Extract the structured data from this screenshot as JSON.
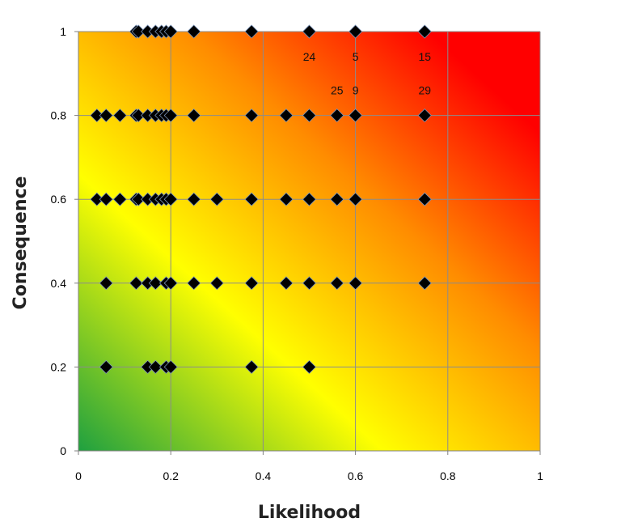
{
  "chart_data": {
    "type": "scatter",
    "title": "",
    "xlabel": "Likelihood",
    "ylabel": "Consequence",
    "xlim": [
      0,
      1
    ],
    "ylim": [
      0,
      1
    ],
    "x_ticks": [
      "0",
      "0.2",
      "0.4",
      "0.6",
      "0.8",
      "1"
    ],
    "y_ticks": [
      "0",
      "0.2",
      "0.4",
      "0.6",
      "0.8",
      "1"
    ],
    "grid": true,
    "marker": "diamond",
    "marker_color": "#000000",
    "background": "heatmap gradient: green at (0,0), yellow in middle, red at (1,1)",
    "colors": {
      "low": "#1fa040",
      "mid": "#ffff00",
      "high": "#ff0000"
    },
    "points": [
      {
        "x": 0.125,
        "y": 1.0
      },
      {
        "x": 0.13,
        "y": 1.0
      },
      {
        "x": 0.15,
        "y": 1.0
      },
      {
        "x": 0.167,
        "y": 1.0
      },
      {
        "x": 0.18,
        "y": 1.0
      },
      {
        "x": 0.19,
        "y": 1.0
      },
      {
        "x": 0.2,
        "y": 1.0
      },
      {
        "x": 0.25,
        "y": 1.0
      },
      {
        "x": 0.375,
        "y": 1.0
      },
      {
        "x": 0.5,
        "y": 1.0
      },
      {
        "x": 0.6,
        "y": 1.0
      },
      {
        "x": 0.75,
        "y": 1.0
      },
      {
        "x": 0.04,
        "y": 0.8
      },
      {
        "x": 0.06,
        "y": 0.8
      },
      {
        "x": 0.09,
        "y": 0.8
      },
      {
        "x": 0.125,
        "y": 0.8
      },
      {
        "x": 0.13,
        "y": 0.8
      },
      {
        "x": 0.15,
        "y": 0.8
      },
      {
        "x": 0.167,
        "y": 0.8
      },
      {
        "x": 0.18,
        "y": 0.8
      },
      {
        "x": 0.19,
        "y": 0.8
      },
      {
        "x": 0.2,
        "y": 0.8
      },
      {
        "x": 0.25,
        "y": 0.8
      },
      {
        "x": 0.375,
        "y": 0.8
      },
      {
        "x": 0.45,
        "y": 0.8
      },
      {
        "x": 0.5,
        "y": 0.8
      },
      {
        "x": 0.56,
        "y": 0.8
      },
      {
        "x": 0.6,
        "y": 0.8
      },
      {
        "x": 0.75,
        "y": 0.8
      },
      {
        "x": 0.04,
        "y": 0.6
      },
      {
        "x": 0.06,
        "y": 0.6
      },
      {
        "x": 0.09,
        "y": 0.6
      },
      {
        "x": 0.125,
        "y": 0.6
      },
      {
        "x": 0.13,
        "y": 0.6
      },
      {
        "x": 0.15,
        "y": 0.6
      },
      {
        "x": 0.167,
        "y": 0.6
      },
      {
        "x": 0.18,
        "y": 0.6
      },
      {
        "x": 0.19,
        "y": 0.6
      },
      {
        "x": 0.2,
        "y": 0.6
      },
      {
        "x": 0.25,
        "y": 0.6
      },
      {
        "x": 0.3,
        "y": 0.6
      },
      {
        "x": 0.375,
        "y": 0.6
      },
      {
        "x": 0.45,
        "y": 0.6
      },
      {
        "x": 0.5,
        "y": 0.6
      },
      {
        "x": 0.56,
        "y": 0.6
      },
      {
        "x": 0.6,
        "y": 0.6
      },
      {
        "x": 0.75,
        "y": 0.6
      },
      {
        "x": 0.06,
        "y": 0.4
      },
      {
        "x": 0.125,
        "y": 0.4
      },
      {
        "x": 0.15,
        "y": 0.4
      },
      {
        "x": 0.167,
        "y": 0.4
      },
      {
        "x": 0.19,
        "y": 0.4
      },
      {
        "x": 0.2,
        "y": 0.4
      },
      {
        "x": 0.25,
        "y": 0.4
      },
      {
        "x": 0.3,
        "y": 0.4
      },
      {
        "x": 0.375,
        "y": 0.4
      },
      {
        "x": 0.45,
        "y": 0.4
      },
      {
        "x": 0.5,
        "y": 0.4
      },
      {
        "x": 0.56,
        "y": 0.4
      },
      {
        "x": 0.6,
        "y": 0.4
      },
      {
        "x": 0.75,
        "y": 0.4
      },
      {
        "x": 0.06,
        "y": 0.2
      },
      {
        "x": 0.15,
        "y": 0.2
      },
      {
        "x": 0.167,
        "y": 0.2
      },
      {
        "x": 0.19,
        "y": 0.2
      },
      {
        "x": 0.2,
        "y": 0.2
      },
      {
        "x": 0.375,
        "y": 0.2
      },
      {
        "x": 0.5,
        "y": 0.2
      }
    ],
    "annotations": [
      {
        "text": "24",
        "x": 0.5,
        "y": 0.94
      },
      {
        "text": "5",
        "x": 0.6,
        "y": 0.94
      },
      {
        "text": "15",
        "x": 0.75,
        "y": 0.94
      },
      {
        "text": "25",
        "x": 0.56,
        "y": 0.86
      },
      {
        "text": "9",
        "x": 0.6,
        "y": 0.86
      },
      {
        "text": "29",
        "x": 0.75,
        "y": 0.86
      }
    ]
  }
}
